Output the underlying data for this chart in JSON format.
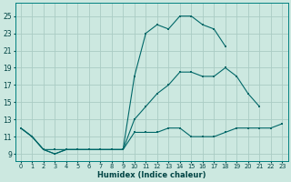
{
  "xlabel": "Humidex (Indice chaleur)",
  "background_color": "#cce8e0",
  "grid_color": "#aaccc4",
  "line_color": "#006868",
  "xlim": [
    -0.5,
    23.5
  ],
  "ylim": [
    8.2,
    26.5
  ],
  "yticks": [
    9,
    11,
    13,
    15,
    17,
    19,
    21,
    23,
    25
  ],
  "xticks": [
    0,
    1,
    2,
    3,
    4,
    5,
    6,
    7,
    8,
    9,
    10,
    11,
    12,
    13,
    14,
    15,
    16,
    17,
    18,
    19,
    20,
    21,
    22,
    23
  ],
  "line1_x": [
    0,
    1,
    2,
    3,
    4,
    5,
    6,
    7,
    8,
    9,
    10,
    11,
    12,
    13,
    14,
    15,
    16,
    17,
    18,
    19,
    20,
    21,
    22,
    23
  ],
  "line1_y": [
    12.0,
    11.0,
    9.5,
    9.0,
    9.5,
    9.5,
    9.5,
    9.5,
    9.5,
    9.5,
    11.5,
    11.5,
    11.5,
    12.0,
    12.0,
    11.0,
    11.0,
    11.0,
    11.5,
    12.0,
    12.0,
    12.0,
    12.0,
    12.5
  ],
  "line2_x": [
    0,
    1,
    2,
    3,
    4,
    5,
    6,
    7,
    8,
    9,
    10,
    11,
    12,
    13,
    14,
    15,
    16,
    17,
    18,
    19,
    20,
    21
  ],
  "line2_y": [
    12.0,
    11.0,
    9.5,
    9.5,
    9.5,
    9.5,
    9.5,
    9.5,
    9.5,
    9.5,
    13.0,
    14.5,
    16.0,
    17.0,
    18.5,
    18.5,
    18.0,
    18.0,
    19.0,
    18.0,
    16.0,
    14.5
  ],
  "line3_x": [
    0,
    1,
    2,
    3,
    4,
    5,
    6,
    7,
    8,
    9,
    10,
    11,
    12,
    13,
    14,
    15,
    16,
    17,
    18
  ],
  "line3_y": [
    12.0,
    11.0,
    9.5,
    9.0,
    9.5,
    9.5,
    9.5,
    9.5,
    9.5,
    9.5,
    18.0,
    23.0,
    24.0,
    23.5,
    25.0,
    25.0,
    24.0,
    23.5,
    21.5
  ]
}
